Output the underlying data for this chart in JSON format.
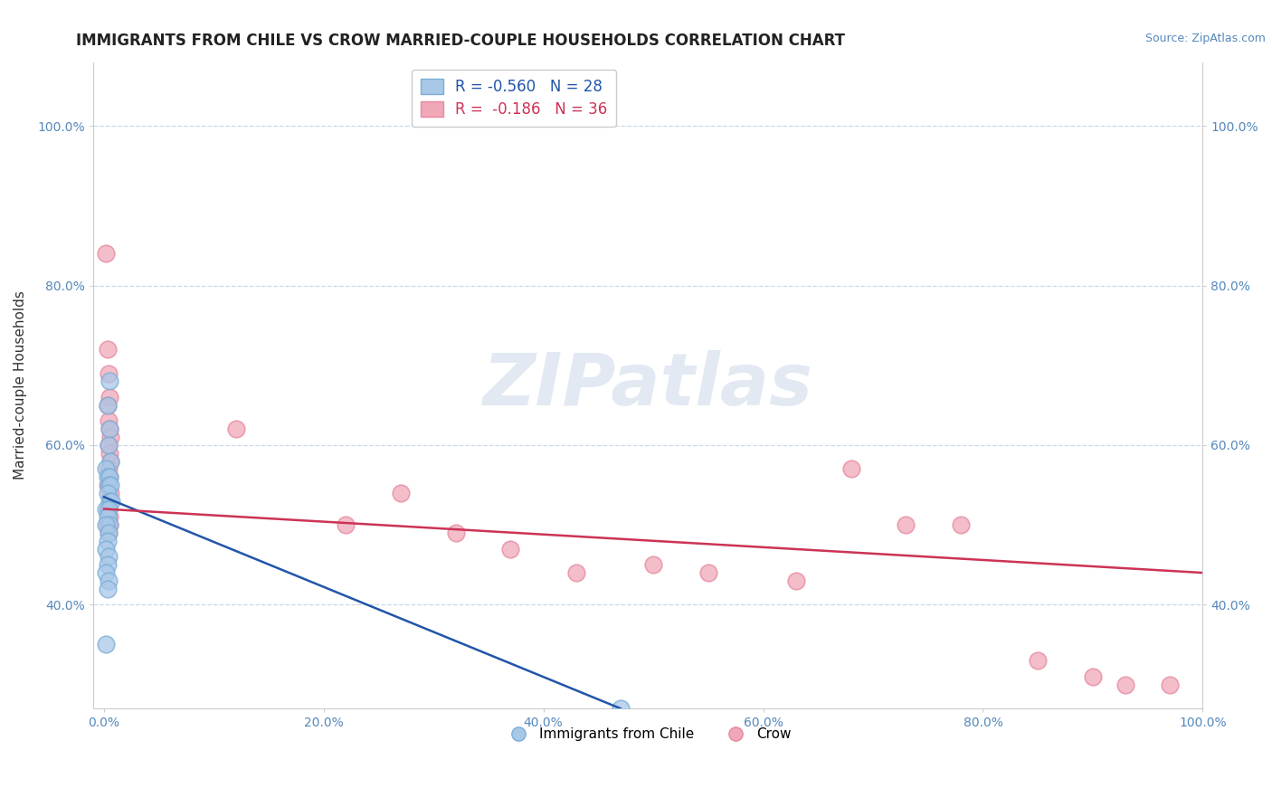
{
  "title": "IMMIGRANTS FROM CHILE VS CROW MARRIED-COUPLE HOUSEHOLDS CORRELATION CHART",
  "source": "Source: ZipAtlas.com",
  "ylabel": "Married-couple Households",
  "legend_blue_r": "R = -0.560",
  "legend_blue_n": "N = 28",
  "legend_pink_r": "R =  -0.186",
  "legend_pink_n": "N = 36",
  "legend_blue_label": "Immigrants from Chile",
  "legend_pink_label": "Crow",
  "blue_color": "#a8c8e8",
  "pink_color": "#f0a8b8",
  "blue_edge_color": "#7aaed6",
  "pink_edge_color": "#e888a0",
  "blue_line_color": "#2255aa",
  "pink_line_color": "#cc3355",
  "blue_scatter": [
    [
      0.3,
      65
    ],
    [
      0.5,
      62
    ],
    [
      0.4,
      60
    ],
    [
      0.6,
      58
    ],
    [
      0.2,
      57
    ],
    [
      0.3,
      56
    ],
    [
      0.5,
      56
    ],
    [
      0.4,
      55
    ],
    [
      0.6,
      55
    ],
    [
      0.3,
      54
    ],
    [
      0.5,
      53
    ],
    [
      0.7,
      53
    ],
    [
      0.2,
      52
    ],
    [
      0.4,
      52
    ],
    [
      0.3,
      51
    ],
    [
      0.5,
      50
    ],
    [
      0.2,
      50
    ],
    [
      0.4,
      49
    ],
    [
      0.3,
      48
    ],
    [
      0.2,
      47
    ],
    [
      0.4,
      46
    ],
    [
      0.3,
      45
    ],
    [
      0.2,
      44
    ],
    [
      0.4,
      43
    ],
    [
      0.3,
      42
    ],
    [
      0.2,
      35
    ],
    [
      47.0,
      27
    ],
    [
      0.5,
      68
    ]
  ],
  "pink_scatter": [
    [
      0.2,
      84
    ],
    [
      0.3,
      72
    ],
    [
      0.4,
      69
    ],
    [
      0.5,
      66
    ],
    [
      0.3,
      65
    ],
    [
      0.4,
      63
    ],
    [
      0.5,
      62
    ],
    [
      0.6,
      61
    ],
    [
      0.4,
      60
    ],
    [
      0.5,
      59
    ],
    [
      0.6,
      58
    ],
    [
      0.4,
      57
    ],
    [
      0.5,
      56
    ],
    [
      0.3,
      55
    ],
    [
      0.6,
      54
    ],
    [
      0.4,
      52
    ],
    [
      0.5,
      51
    ],
    [
      0.3,
      50
    ],
    [
      0.5,
      50
    ],
    [
      0.4,
      49
    ],
    [
      12.0,
      62
    ],
    [
      22.0,
      50
    ],
    [
      27.0,
      54
    ],
    [
      32.0,
      49
    ],
    [
      37.0,
      47
    ],
    [
      43.0,
      44
    ],
    [
      50.0,
      45
    ],
    [
      55.0,
      44
    ],
    [
      63.0,
      43
    ],
    [
      68.0,
      57
    ],
    [
      73.0,
      50
    ],
    [
      78.0,
      50
    ],
    [
      85.0,
      33
    ],
    [
      90.0,
      31
    ],
    [
      93.0,
      30
    ],
    [
      97.0,
      30
    ]
  ],
  "blue_trend_x": [
    0,
    47
  ],
  "blue_trend_y": [
    53.5,
    27
  ],
  "pink_trend_x": [
    0,
    100
  ],
  "pink_trend_y": [
    52,
    44
  ],
  "xlim": [
    -1,
    100
  ],
  "ylim": [
    27,
    108
  ],
  "xticks": [
    0,
    20,
    40,
    60,
    80,
    100
  ],
  "xticklabels": [
    "0.0%",
    "20.0%",
    "40.0%",
    "60.0%",
    "80.0%",
    "100.0%"
  ],
  "yticks": [
    40,
    60,
    80,
    100
  ],
  "yticklabels": [
    "40.0%",
    "60.0%",
    "80.0%",
    "100.0%"
  ],
  "background_color": "#ffffff",
  "grid_color": "#c8d8ec",
  "watermark_text": "ZIPatlas",
  "title_fontsize": 12,
  "label_fontsize": 11,
  "tick_fontsize": 10,
  "source_fontsize": 9,
  "legend_fontsize": 12,
  "scatter_size": 180
}
